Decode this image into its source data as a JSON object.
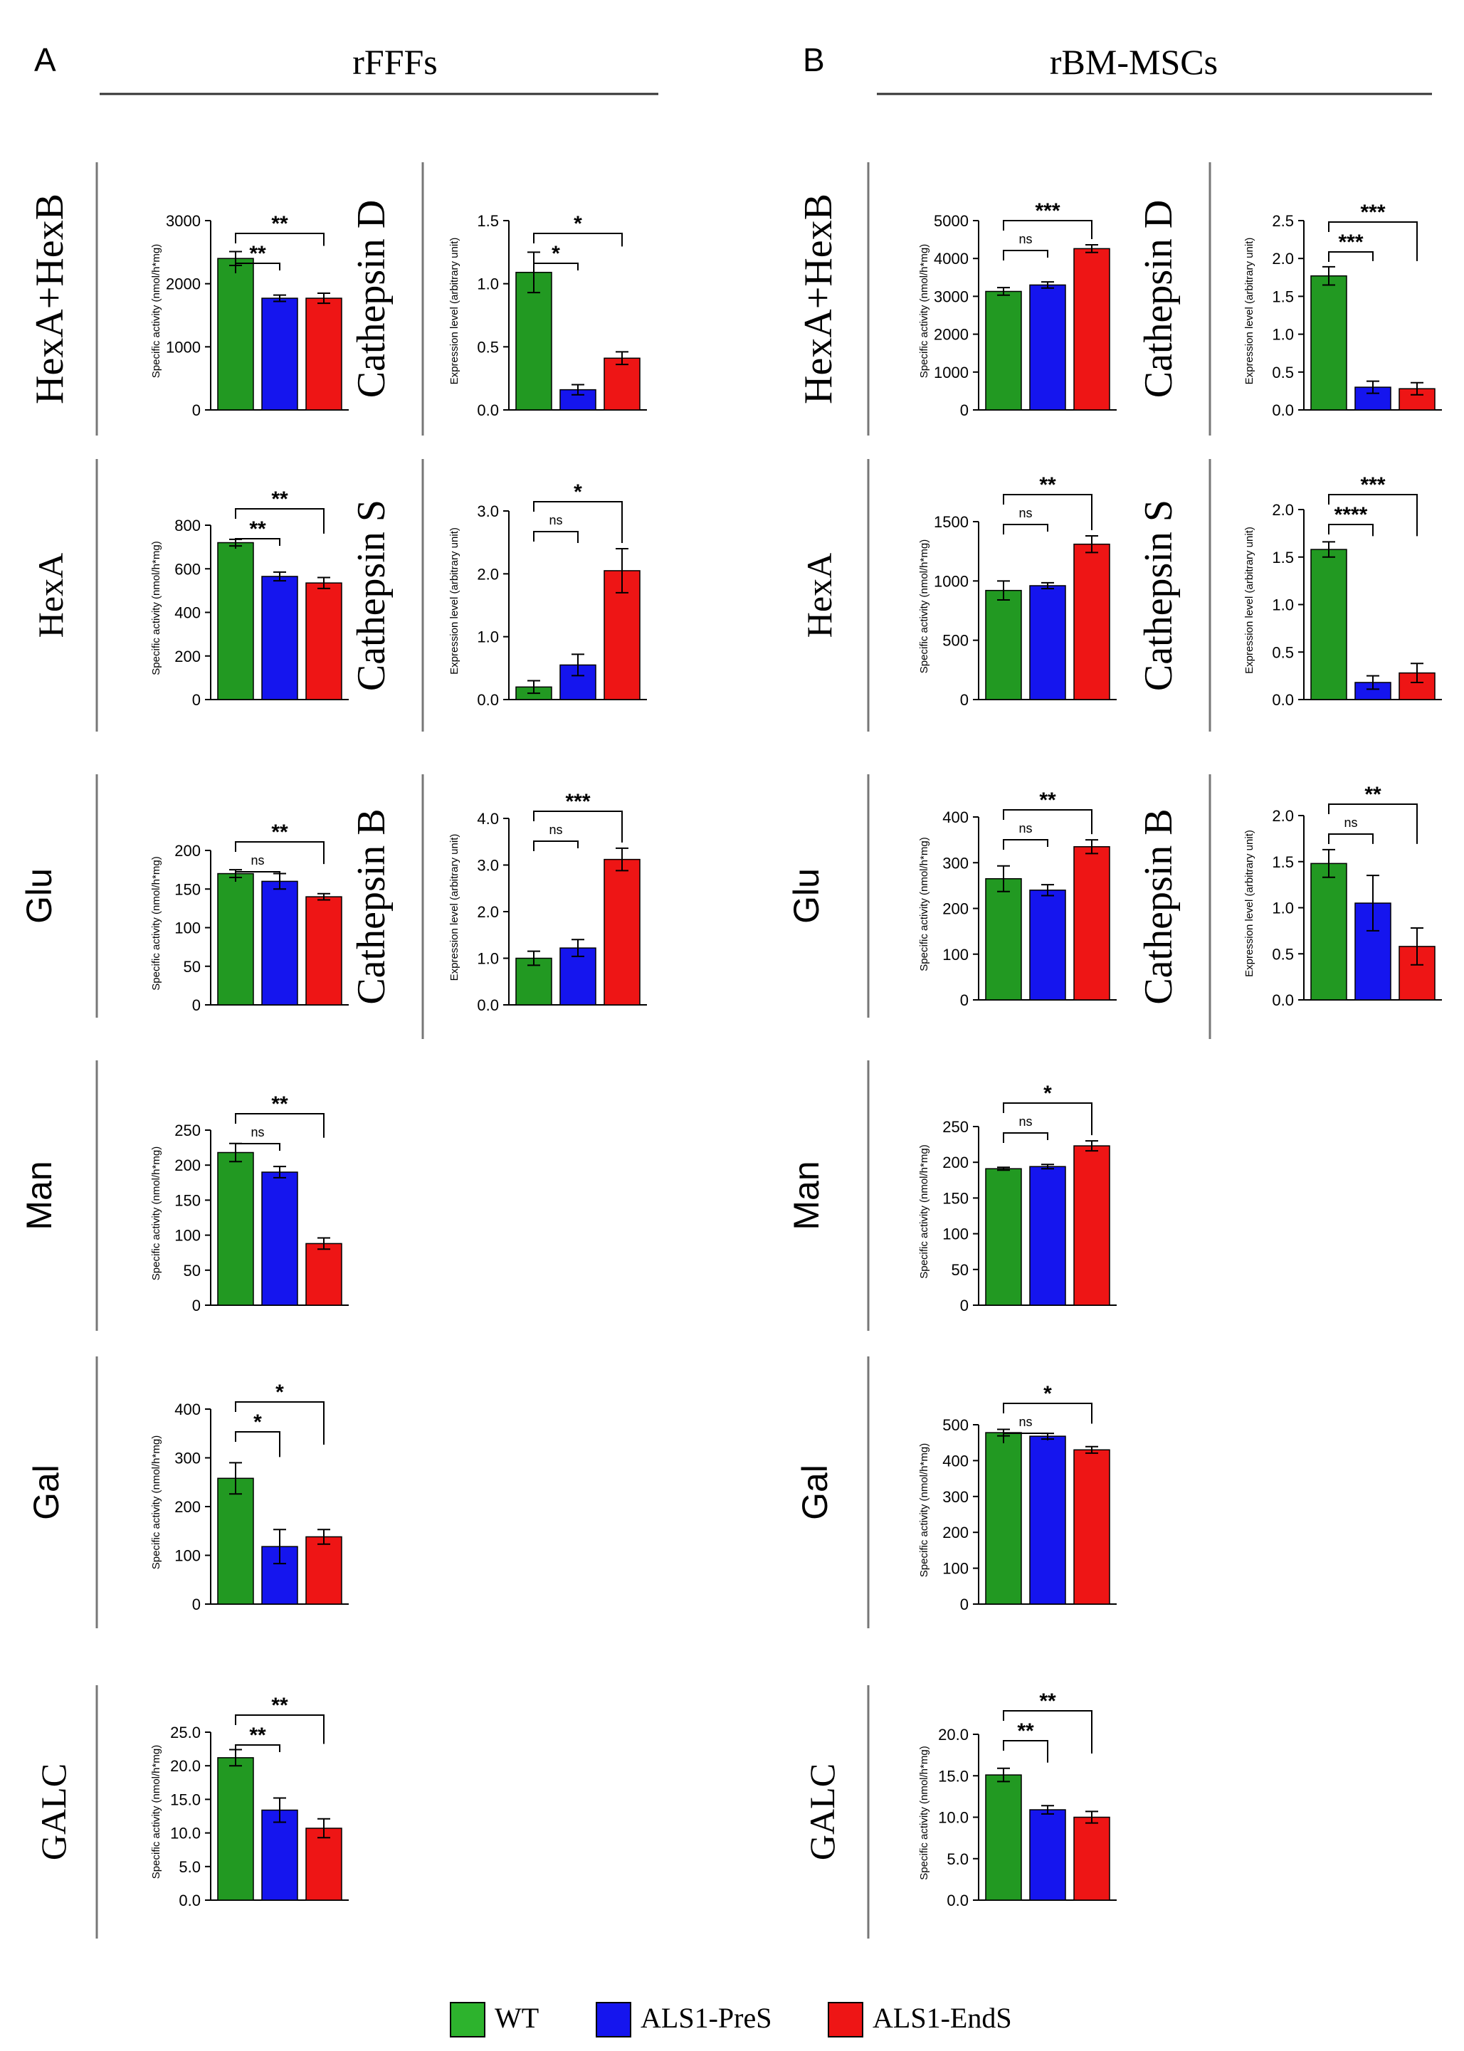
{
  "panels": [
    {
      "letter": "A",
      "title": "rFFFs"
    },
    {
      "letter": "B",
      "title": "rBM-MSCs"
    }
  ],
  "groups": [
    "WT",
    "ALS1-PreS",
    "ALS1-EndS"
  ],
  "colors": {
    "WT": "#229922",
    "ALS1-PreS": "#1515ee",
    "ALS1-EndS": "#ee1515",
    "WT_light": "#2db32d"
  },
  "legend": [
    {
      "label": "WT",
      "color": "#2db32d"
    },
    {
      "label": "ALS1-PreS",
      "color": "#1515ee"
    },
    {
      "label": "ALS1-EndS",
      "color": "#ee1515"
    }
  ],
  "chart_data": [
    {
      "id": "A-hexahexb",
      "type": "bar",
      "panel": "A",
      "label": "HexA+HexB",
      "label_font": "serif",
      "ylabel": "Specific activity (nmol/h*mg)",
      "categories": [
        "WT",
        "ALS1-PreS",
        "ALS1-EndS"
      ],
      "values": [
        2400,
        1770,
        1770
      ],
      "errors": [
        110,
        50,
        80
      ],
      "ylim": [
        0,
        3000
      ],
      "yticks": [
        "0",
        "1000",
        "2000",
        "3000"
      ],
      "significance": [
        {
          "pair": "WT vs ALS1-PreS",
          "label": "**"
        },
        {
          "pair": "WT vs ALS1-EndS",
          "label": "**"
        }
      ]
    },
    {
      "id": "A-hexa",
      "type": "bar",
      "panel": "A",
      "label": "HexA",
      "label_font": "serif",
      "ylabel": "Specific activity (nmol/h*mg)",
      "categories": [
        "WT",
        "ALS1-PreS",
        "ALS1-EndS"
      ],
      "values": [
        720,
        565,
        535
      ],
      "errors": [
        15,
        20,
        25
      ],
      "ylim": [
        0,
        800
      ],
      "yticks": [
        "0",
        "200",
        "400",
        "600",
        "800"
      ],
      "significance": [
        {
          "pair": "WT vs ALS1-PreS",
          "label": "**"
        },
        {
          "pair": "WT vs ALS1-EndS",
          "label": "**"
        }
      ]
    },
    {
      "id": "A-glu",
      "type": "bar",
      "panel": "A",
      "label": "Glu",
      "label_font": "sans",
      "ylabel": "Specific activity (nmol/h*mg)",
      "categories": [
        "WT",
        "ALS1-PreS",
        "ALS1-EndS"
      ],
      "values": [
        170,
        160,
        140
      ],
      "errors": [
        5,
        10,
        4
      ],
      "ylim": [
        0,
        200
      ],
      "yticks": [
        "0",
        "50",
        "100",
        "150",
        "200"
      ],
      "significance": [
        {
          "pair": "WT vs ALS1-PreS",
          "label": "ns"
        },
        {
          "pair": "WT vs ALS1-EndS",
          "label": "**"
        }
      ]
    },
    {
      "id": "A-man",
      "type": "bar",
      "panel": "A",
      "label": "Man",
      "label_font": "sans",
      "ylabel": "Specific activity (nmol/h*mg)",
      "categories": [
        "WT",
        "ALS1-PreS",
        "ALS1-EndS"
      ],
      "values": [
        218,
        190,
        88
      ],
      "errors": [
        13,
        8,
        8
      ],
      "ylim": [
        0,
        250
      ],
      "yticks": [
        "0",
        "50",
        "100",
        "150",
        "200",
        "250"
      ],
      "significance": [
        {
          "pair": "WT vs ALS1-PreS",
          "label": "ns"
        },
        {
          "pair": "WT vs ALS1-EndS",
          "label": "**"
        }
      ]
    },
    {
      "id": "A-gal",
      "type": "bar",
      "panel": "A",
      "label": "Gal",
      "label_font": "sans",
      "ylabel": "Specific activity (nmol/h*mg)",
      "categories": [
        "WT",
        "ALS1-PreS",
        "ALS1-EndS"
      ],
      "values": [
        258,
        118,
        138
      ],
      "errors": [
        32,
        35,
        15
      ],
      "ylim": [
        0,
        400
      ],
      "yticks": [
        "0",
        "100",
        "200",
        "300",
        "400"
      ],
      "significance": [
        {
          "pair": "WT vs ALS1-PreS",
          "label": "*"
        },
        {
          "pair": "WT vs ALS1-EndS",
          "label": "*"
        }
      ]
    },
    {
      "id": "A-galc",
      "type": "bar",
      "panel": "A",
      "label": "GALC",
      "label_font": "serif",
      "ylabel": "Specific activity (nmol/h*mg)",
      "categories": [
        "WT",
        "ALS1-PreS",
        "ALS1-EndS"
      ],
      "values": [
        21.2,
        13.4,
        10.7
      ],
      "errors": [
        1.2,
        1.8,
        1.4
      ],
      "ylim": [
        0,
        25
      ],
      "yticks": [
        "0.0",
        "5.0",
        "10.0",
        "15.0",
        "20.0",
        "25.0"
      ],
      "significance": [
        {
          "pair": "WT vs ALS1-PreS",
          "label": "**"
        },
        {
          "pair": "WT vs ALS1-EndS",
          "label": "**"
        }
      ]
    },
    {
      "id": "A-catd",
      "type": "bar",
      "panel": "A",
      "label": "Cathepsin D",
      "label_font": "serif",
      "ylabel": "Expression level (arbitrary unit)",
      "categories": [
        "WT",
        "ALS1-PreS",
        "ALS1-EndS"
      ],
      "values": [
        1.09,
        0.16,
        0.41
      ],
      "errors": [
        0.16,
        0.04,
        0.05
      ],
      "ylim": [
        0,
        1.5
      ],
      "yticks": [
        "0.0",
        "0.5",
        "1.0",
        "1.5"
      ],
      "significance": [
        {
          "pair": "WT vs ALS1-PreS",
          "label": "*"
        },
        {
          "pair": "WT vs ALS1-EndS",
          "label": "*"
        }
      ]
    },
    {
      "id": "A-cats",
      "type": "bar",
      "panel": "A",
      "label": "Cathepsin S",
      "label_font": "serif",
      "ylabel": "Expression level (arbitrary unit)",
      "categories": [
        "WT",
        "ALS1-PreS",
        "ALS1-EndS"
      ],
      "values": [
        0.2,
        0.55,
        2.05
      ],
      "errors": [
        0.1,
        0.17,
        0.35
      ],
      "ylim": [
        0,
        3
      ],
      "yticks": [
        "0.0",
        "1.0",
        "2.0",
        "3.0"
      ],
      "significance": [
        {
          "pair": "WT vs ALS1-PreS",
          "label": "ns"
        },
        {
          "pair": "WT vs ALS1-EndS",
          "label": "*"
        }
      ]
    },
    {
      "id": "A-catb",
      "type": "bar",
      "panel": "A",
      "label": "Cathepsin B",
      "label_font": "serif",
      "ylabel": "Expression level (arbitrary unit)",
      "categories": [
        "WT",
        "ALS1-PreS",
        "ALS1-EndS"
      ],
      "values": [
        1.0,
        1.22,
        3.12
      ],
      "errors": [
        0.15,
        0.18,
        0.24
      ],
      "ylim": [
        0,
        4
      ],
      "yticks": [
        "0.0",
        "1.0",
        "2.0",
        "3.0",
        "4.0"
      ],
      "significance": [
        {
          "pair": "WT vs ALS1-PreS",
          "label": "ns"
        },
        {
          "pair": "WT vs ALS1-EndS",
          "label": "***"
        }
      ]
    },
    {
      "id": "B-hexahexb",
      "type": "bar",
      "panel": "B",
      "label": "HexA+HexB",
      "label_font": "serif",
      "ylabel": "Specific activity (nmol/h*mg)",
      "categories": [
        "WT",
        "ALS1-PreS",
        "ALS1-EndS"
      ],
      "values": [
        3130,
        3300,
        4260
      ],
      "errors": [
        100,
        80,
        100
      ],
      "ylim": [
        0,
        5000
      ],
      "yticks": [
        "0",
        "1000",
        "2000",
        "3000",
        "4000",
        "5000"
      ],
      "significance": [
        {
          "pair": "WT vs ALS1-PreS",
          "label": "ns"
        },
        {
          "pair": "WT vs ALS1-EndS",
          "label": "***"
        }
      ]
    },
    {
      "id": "B-hexa",
      "type": "bar",
      "panel": "B",
      "label": "HexA",
      "label_font": "serif",
      "ylabel": "Specific activity (nmol/h*mg)",
      "categories": [
        "WT",
        "ALS1-PreS",
        "ALS1-EndS"
      ],
      "values": [
        920,
        960,
        1310
      ],
      "errors": [
        80,
        25,
        70
      ],
      "ylim": [
        0,
        1500
      ],
      "yticks": [
        "0",
        "500",
        "1000",
        "1500"
      ],
      "significance": [
        {
          "pair": "WT vs ALS1-PreS",
          "label": "ns"
        },
        {
          "pair": "WT vs ALS1-EndS",
          "label": "**"
        }
      ]
    },
    {
      "id": "B-glu",
      "type": "bar",
      "panel": "B",
      "label": "Glu",
      "label_font": "sans",
      "ylabel": "Specific activity (nmol/h*mg)",
      "categories": [
        "WT",
        "ALS1-PreS",
        "ALS1-EndS"
      ],
      "values": [
        265,
        240,
        335
      ],
      "errors": [
        28,
        12,
        15
      ],
      "ylim": [
        0,
        400
      ],
      "yticks": [
        "0",
        "100",
        "200",
        "300",
        "400"
      ],
      "significance": [
        {
          "pair": "WT vs ALS1-PreS",
          "label": "ns"
        },
        {
          "pair": "WT vs ALS1-EndS",
          "label": "**"
        }
      ]
    },
    {
      "id": "B-man",
      "type": "bar",
      "panel": "B",
      "label": "Man",
      "label_font": "sans",
      "ylabel": "Specific activity (nmol/h*mg)",
      "categories": [
        "WT",
        "ALS1-PreS",
        "ALS1-EndS"
      ],
      "values": [
        191,
        194,
        223
      ],
      "errors": [
        2,
        3,
        7
      ],
      "ylim": [
        0,
        250
      ],
      "yticks": [
        "0",
        "50",
        "100",
        "150",
        "200",
        "250"
      ],
      "significance": [
        {
          "pair": "WT vs ALS1-PreS",
          "label": "ns"
        },
        {
          "pair": "WT vs ALS1-EndS",
          "label": "*"
        }
      ]
    },
    {
      "id": "B-gal",
      "type": "bar",
      "panel": "B",
      "label": "Gal",
      "label_font": "sans",
      "ylabel": "Specific activity (nmol/h*mg)",
      "categories": [
        "WT",
        "ALS1-PreS",
        "ALS1-EndS"
      ],
      "values": [
        478,
        468,
        430
      ],
      "errors": [
        9,
        8,
        9
      ],
      "ylim": [
        0,
        500
      ],
      "yticks": [
        "0",
        "100",
        "200",
        "300",
        "400",
        "500"
      ],
      "significance": [
        {
          "pair": "WT vs ALS1-PreS",
          "label": "ns"
        },
        {
          "pair": "WT vs ALS1-EndS",
          "label": "*"
        }
      ]
    },
    {
      "id": "B-galc",
      "type": "bar",
      "panel": "B",
      "label": "GALC",
      "label_font": "serif",
      "ylabel": "Specific activity (nmol/h*mg)",
      "categories": [
        "WT",
        "ALS1-PreS",
        "ALS1-EndS"
      ],
      "values": [
        15.1,
        10.9,
        10.0
      ],
      "errors": [
        0.8,
        0.5,
        0.7
      ],
      "ylim": [
        0,
        20
      ],
      "yticks": [
        "0.0",
        "5.0",
        "10.0",
        "15.0",
        "20.0"
      ],
      "significance": [
        {
          "pair": "WT vs ALS1-PreS",
          "label": "**"
        },
        {
          "pair": "WT vs ALS1-EndS",
          "label": "**"
        }
      ]
    },
    {
      "id": "B-catd",
      "type": "bar",
      "panel": "B",
      "label": "Cathepsin D",
      "label_font": "serif",
      "ylabel": "Expression level (arbitrary unit)",
      "categories": [
        "WT",
        "ALS1-PreS",
        "ALS1-EndS"
      ],
      "values": [
        1.77,
        0.3,
        0.28
      ],
      "errors": [
        0.12,
        0.08,
        0.08
      ],
      "ylim": [
        0,
        2.5
      ],
      "yticks": [
        "0.0",
        "0.5",
        "1.0",
        "1.5",
        "2.0",
        "2.5"
      ],
      "significance": [
        {
          "pair": "WT vs ALS1-PreS",
          "label": "***"
        },
        {
          "pair": "WT vs ALS1-EndS",
          "label": "***"
        }
      ]
    },
    {
      "id": "B-cats",
      "type": "bar",
      "panel": "B",
      "label": "Cathepsin S",
      "label_font": "serif",
      "ylabel": "Expression level (arbitrary unit)",
      "categories": [
        "WT",
        "ALS1-PreS",
        "ALS1-EndS"
      ],
      "values": [
        1.58,
        0.18,
        0.28
      ],
      "errors": [
        0.08,
        0.07,
        0.1
      ],
      "ylim": [
        0,
        2
      ],
      "yticks": [
        "0.0",
        "0.5",
        "1.0",
        "1.5",
        "2.0"
      ],
      "significance": [
        {
          "pair": "WT vs ALS1-PreS",
          "label": "****"
        },
        {
          "pair": "WT vs ALS1-EndS",
          "label": "***"
        }
      ]
    },
    {
      "id": "B-catb",
      "type": "bar",
      "panel": "B",
      "label": "Cathepsin B",
      "label_font": "serif",
      "ylabel": "Expression level (arbitrary unit)",
      "categories": [
        "WT",
        "ALS1-PreS",
        "ALS1-EndS"
      ],
      "values": [
        1.48,
        1.05,
        0.58
      ],
      "errors": [
        0.15,
        0.3,
        0.2
      ],
      "ylim": [
        0,
        2
      ],
      "yticks": [
        "0.0",
        "0.5",
        "1.0",
        "1.5",
        "2.0"
      ],
      "significance": [
        {
          "pair": "WT vs ALS1-PreS",
          "label": "ns"
        },
        {
          "pair": "WT vs ALS1-EndS",
          "label": "**"
        }
      ]
    }
  ]
}
